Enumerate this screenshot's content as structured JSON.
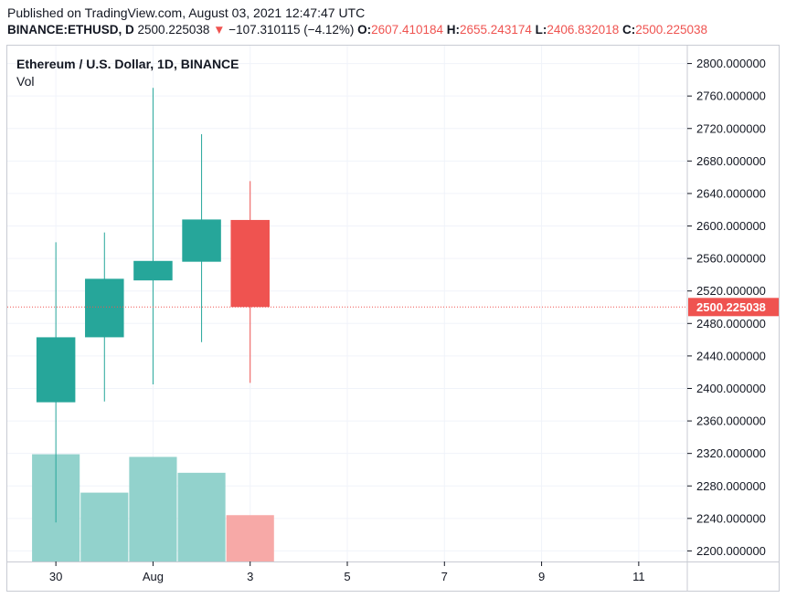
{
  "header": {
    "published": "Published on TradingView.com, August 03, 2021 12:47:47 UTC",
    "symbol": "BINANCE:ETHUSD, D",
    "last": "2500.225038",
    "change_arrow": "▼",
    "change": "−107.310115 (−4.12%)",
    "o_label": "O:",
    "o_value": "2607.410184",
    "h_label": "H:",
    "h_value": "2655.243174",
    "l_label": "L:",
    "l_value": "2406.832018",
    "c_label": "C:",
    "c_value": "2500.225038"
  },
  "legend": {
    "title": "Ethereum / U.S. Dollar, 1D, BINANCE",
    "vol": "Vol"
  },
  "colors": {
    "up": "#26a69a",
    "down": "#ef5350",
    "vol_up": "#92d2cc",
    "vol_down": "#f7a9a7",
    "grid": "#f0f3fa",
    "axis_text": "#131722",
    "price_line": "#ef5350"
  },
  "chart_data": {
    "type": "candlestick",
    "title": "Ethereum / U.S. Dollar, 1D, BINANCE",
    "candles": [
      {
        "date": "2021-07-30",
        "open": 2383,
        "high": 2580,
        "low": 2235,
        "close": 2463
      },
      {
        "date": "2021-07-31",
        "open": 2463,
        "high": 2592,
        "low": 2384,
        "close": 2535
      },
      {
        "date": "2021-08-01",
        "open": 2533,
        "high": 2770,
        "low": 2405,
        "close": 2557
      },
      {
        "date": "2021-08-02",
        "open": 2556,
        "high": 2713,
        "low": 2457,
        "close": 2608
      },
      {
        "date": "2021-08-03",
        "open": 2607.410184,
        "high": 2655.243174,
        "low": 2406.832018,
        "close": 2500.225038
      }
    ],
    "volume_relative": [
      0.81,
      0.52,
      0.79,
      0.67,
      0.35
    ],
    "x_ticks": [
      {
        "label": "30",
        "date": "2021-07-30"
      },
      {
        "label": "Aug",
        "date": "2021-08-01"
      },
      {
        "label": "3",
        "date": "2021-08-03"
      },
      {
        "label": "5",
        "date": "2021-08-05"
      },
      {
        "label": "7",
        "date": "2021-08-07"
      },
      {
        "label": "9",
        "date": "2021-08-09"
      },
      {
        "label": "11",
        "date": "2021-08-11"
      }
    ],
    "y_ticks": [
      "2200.000000",
      "2240.000000",
      "2280.000000",
      "2320.000000",
      "2360.000000",
      "2400.000000",
      "2440.000000",
      "2480.000000",
      "2520.000000",
      "2560.000000",
      "2600.000000",
      "2640.000000",
      "2680.000000",
      "2720.000000",
      "2760.000000",
      "2800.000000"
    ],
    "ylim": [
      2187,
      2822
    ],
    "xlim_dates": [
      "2021-07-29",
      "2021-08-12"
    ],
    "last_price": 2500.225038,
    "last_price_label": "2500.225038",
    "grid": true,
    "y_axis_side": "right"
  }
}
